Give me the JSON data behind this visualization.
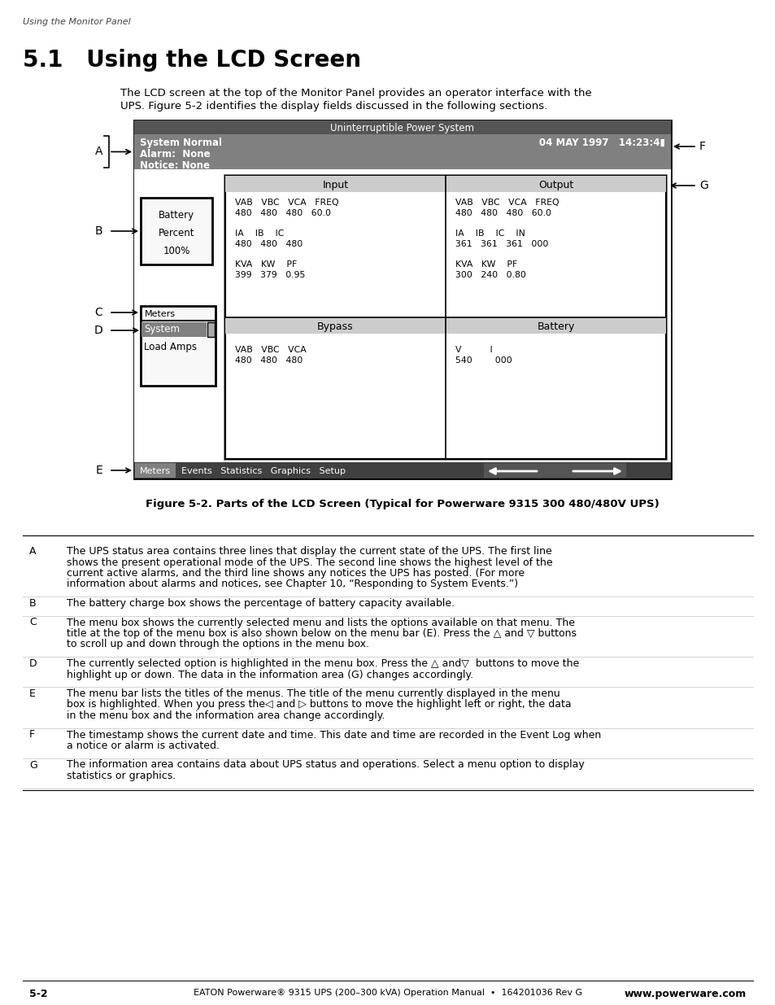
{
  "page_header": "Using the Monitor Panel",
  "section_title": "5.1   Using the LCD Screen",
  "intro_text_line1": "The LCD screen at the top of the Monitor Panel provides an operator interface with the",
  "intro_text_line2": "UPS. Figure 5-2 identifies the display fields discussed in the following sections.",
  "figure_caption": "Figure 5-2. Parts of the LCD Screen (Typical for Powerware 9315 300 480/480V UPS)",
  "lcd_title": "Uninterruptible Power System",
  "lcd_status_line1": "System Normal",
  "lcd_status_line2": "Alarm:  None",
  "lcd_status_line3": "Notice: None",
  "lcd_timestamp": "04 MAY 1997   14:23:4▮",
  "battery_box_lines": [
    "Battery",
    "Percent",
    "100%"
  ],
  "menu_label": "Meters",
  "highlighted_item": "System",
  "menu_item2": "Load Amps",
  "input_title": "Input",
  "input_row1_labels": "VAB   VBC   VCA   FREQ",
  "input_row1_vals": "480   480   480   60.0",
  "input_row2_labels": "IA    IB    IC",
  "input_row2_vals": "480   480   480",
  "input_row3_labels": "KVA   KW    PF",
  "input_row3_vals": "399   379   0.95",
  "output_title": "Output",
  "output_row1_labels": "VAB   VBC   VCA   FREQ",
  "output_row1_vals": "480   480   480   60.0",
  "output_row2_labels": "IA    IB    IC    IN",
  "output_row2_vals": "361   361   361   000",
  "output_row3_labels": "KVA   KW    PF",
  "output_row3_vals": "300   240   0.80",
  "bypass_title": "Bypass",
  "bypass_row1_labels": "VAB   VBC   VCA",
  "bypass_row1_vals": "480   480   480",
  "battery_title": "Battery",
  "battery_row1_labels": "V          I",
  "battery_row1_vals": "540        000",
  "table_rows": [
    {
      "letter": "A",
      "text": "The UPS status area contains three lines that display the current state of the UPS. The first line shows the present operational mode of the UPS. The second line shows the highest level of the current active alarms, and the third line shows any notices the UPS has posted. (For more information about alarms and notices, see Chapter 10, “Responding to System Events.”)"
    },
    {
      "letter": "B",
      "text": "The battery charge box shows the percentage of battery capacity available."
    },
    {
      "letter": "C",
      "text": "The menu box shows the currently selected menu and lists the options available on that menu. The title at the top of the menu box is also shown below on the menu bar (E). Press the △ and ▽ buttons to scroll up and down through the options in the menu box."
    },
    {
      "letter": "D",
      "text": "The currently selected option is highlighted in the menu box. Press the △ and▽  buttons to move the highlight up or down. The data in the information area (G) changes accordingly."
    },
    {
      "letter": "E",
      "text": "The menu bar lists the titles of the menus. The title of the menu currently displayed in the menu box is highlighted. When you press the◁ and ▷ buttons to move the highlight left or right, the data in the menu box and the information area change accordingly."
    },
    {
      "letter": "F",
      "text": "The timestamp shows the current date and time. This date and time are recorded in the Event Log when a notice or alarm is activated."
    },
    {
      "letter": "G",
      "text": "The information area contains data about UPS status and operations. Select a menu option to display statistics or graphics."
    }
  ],
  "footer_left": "5-2",
  "footer_center": "EATON Powerware® 9315 UPS (200–300 kVA) Operation Manual  •  164201036 Rev G",
  "footer_right": "www.powerware.com"
}
